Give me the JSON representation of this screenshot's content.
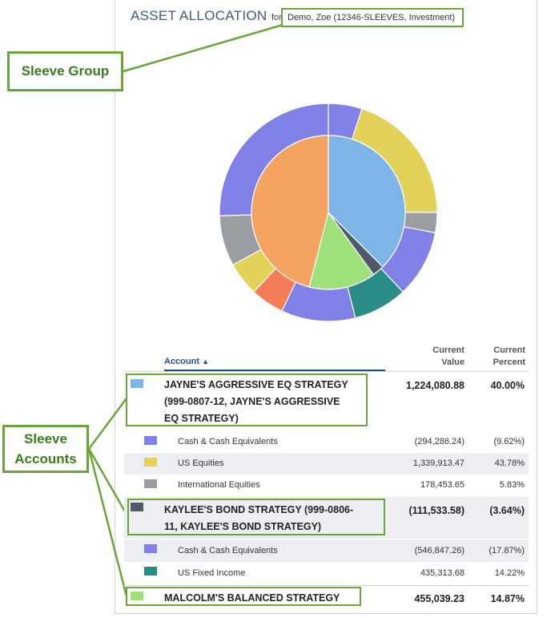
{
  "header": {
    "title": "ASSET ALLOCATION",
    "for_label": "for",
    "group_name": "Demo, Zoe (12346-SLEEVES, Investment)"
  },
  "callouts": {
    "sleeve_group": "Sleeve Group",
    "sleeve_accounts_line1": "Sleeve",
    "sleeve_accounts_line2": "Accounts"
  },
  "colors": {
    "purple": "#8080e6",
    "yellow": "#e3d25a",
    "gray": "#9a9ea3",
    "light_blue": "#7eb5e8",
    "orange": "#f4a460",
    "light_green": "#9ee07a",
    "dark_slate": "#4f5a66",
    "teal": "#2a8c86",
    "coral": "#f47c56",
    "green_accent": "#6aa53a"
  },
  "table": {
    "col_account": "Account",
    "sort_icon": "caret-up-icon",
    "col_current_value_1": "Current",
    "col_current_value_2": "Value",
    "col_current_percent_1": "Current",
    "col_current_percent_2": "Percent",
    "sleeves": [
      {
        "name_line1": "JAYNE'S AGGRESSIVE EQ STRATEGY",
        "name_line2": "(999-0807-12, JAYNE'S AGGRESSIVE",
        "name_line3": "EQ STRATEGY)",
        "value": "1,224,080.88",
        "percent": "40.00%",
        "color": "#7eb5e8",
        "holdings": [
          {
            "name": "Cash & Cash Equivalents",
            "value": "(294,286.24)",
            "percent": "(9.62%)",
            "color": "#8080e6"
          },
          {
            "name": "US Equities",
            "value": "1,339,913.47",
            "percent": "43.78%",
            "color": "#e3d25a"
          },
          {
            "name": "International Equities",
            "value": "178,453.65",
            "percent": "5.83%",
            "color": "#9a9ea3"
          }
        ]
      },
      {
        "name_line1": "KAYLEE'S BOND STRATEGY (999-0806-",
        "name_line2": "11, KAYLEE'S BOND STRATEGY)",
        "value": "(111,533.58)",
        "percent": "(3.64%)",
        "color": "#4f5a66",
        "holdings": [
          {
            "name": "Cash & Cash Equivalents",
            "value": "(546,847.26)",
            "percent": "(17.87%)",
            "color": "#8080e6"
          },
          {
            "name": "US Fixed Income",
            "value": "435,313.68",
            "percent": "14.22%",
            "color": "#2a8c86"
          }
        ]
      },
      {
        "name_line1": "MALCOLM'S BALANCED STRATEGY",
        "value": "455,039.23",
        "percent": "14.87%",
        "color": "#9ee07a"
      }
    ]
  },
  "chart_data": {
    "type": "pie",
    "inner_ring": [
      {
        "label": "JAYNE'S AGGRESSIVE EQ STRATEGY",
        "value": 37.5,
        "color": "#7eb5e8"
      },
      {
        "label": "KAYLEE'S BOND STRATEGY",
        "value": 2.5,
        "color": "#4f5a66"
      },
      {
        "label": "MALCOLM'S BALANCED STRATEGY",
        "value": 14.0,
        "color": "#9ee07a"
      },
      {
        "label": "",
        "value": 46.0,
        "color": "#f4a460"
      }
    ],
    "outer_ring": [
      {
        "label": "",
        "value": 5.0,
        "color": "#8080e6"
      },
      {
        "label": "",
        "value": 20.0,
        "color": "#e3d25a"
      },
      {
        "label": "",
        "value": 3.0,
        "color": "#9a9ea3"
      },
      {
        "label": "",
        "value": 10.0,
        "color": "#8080e6"
      },
      {
        "label": "",
        "value": 8.0,
        "color": "#2a8c86"
      },
      {
        "label": "",
        "value": 11.0,
        "color": "#8080e6"
      },
      {
        "label": "",
        "value": 5.0,
        "color": "#f47c56"
      },
      {
        "label": "",
        "value": 5.0,
        "color": "#e3d25a"
      },
      {
        "label": "",
        "value": 7.5,
        "color": "#9a9ea3"
      },
      {
        "label": "",
        "value": 25.5,
        "color": "#8080e6"
      }
    ]
  }
}
